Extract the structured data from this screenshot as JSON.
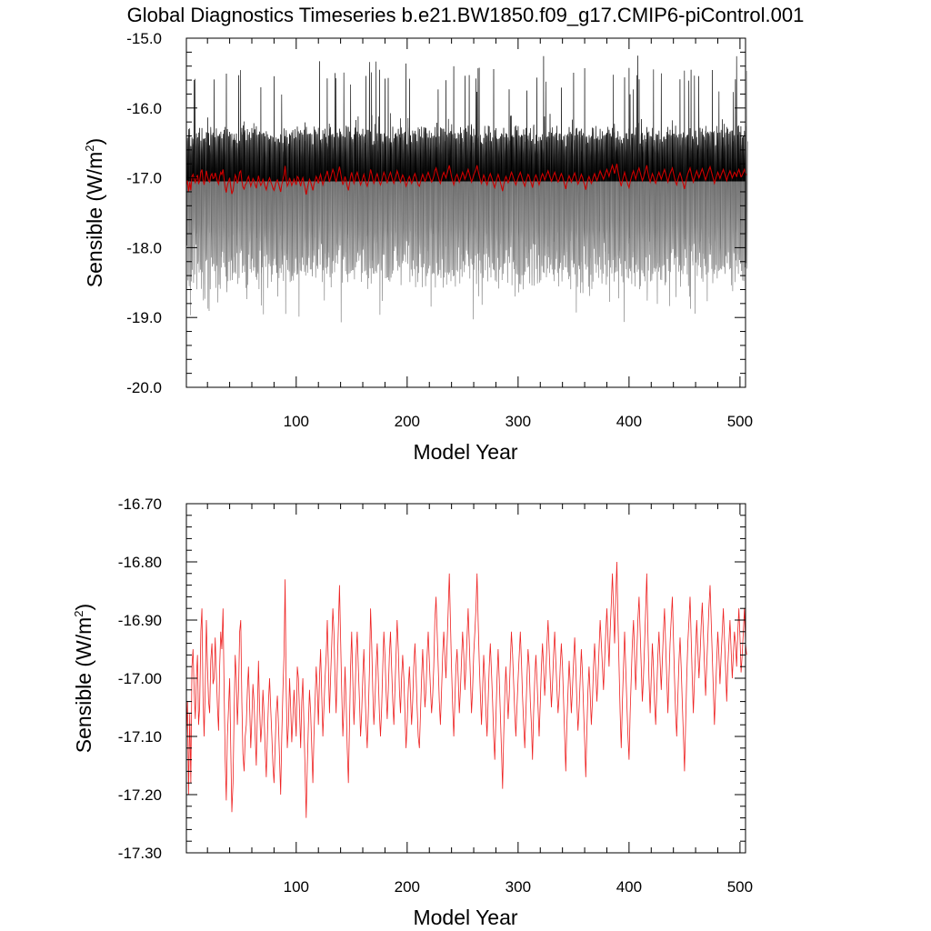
{
  "figure": {
    "title": "Global Diagnostics Timeseries b.e21.BW1850.f09_g17.CMIP6-piControl.001"
  },
  "chart_data": [
    {
      "type": "line",
      "title": "Global Diagnostics Timeseries b.e21.BW1850.f09_g17.CMIP6-piControl.001",
      "xlabel": "Model Year",
      "ylabel": "Sensible (W/m",
      "ylabel_sup": "2",
      "ylabel_close": ")",
      "xlim": [
        1,
        505
      ],
      "ylim": [
        -20.0,
        -15.0
      ],
      "xticks": [
        100,
        200,
        300,
        400,
        500
      ],
      "xtick_labels": [
        "100",
        "200",
        "300",
        "400",
        "500"
      ],
      "yticks": [
        -20.0,
        -19.0,
        -18.0,
        -17.0,
        -16.0,
        -15.0
      ],
      "ytick_labels": [
        "-20.0",
        "-19.0",
        "-18.0",
        "-17.0",
        "-16.0",
        "-15.0"
      ],
      "grid": false,
      "series": [
        {
          "kind": "monthly_envelope",
          "color": "#000000",
          "lower_color": "#6f6f6f",
          "upper_typical": [
            -16.25,
            -16.55
          ],
          "upper_extreme": -15.6,
          "lower_typical": [
            -17.9,
            -18.6
          ],
          "lower_extreme": -19.1
        },
        {
          "kind": "annual_mean",
          "color": "#cc0000",
          "ref": "annual_mean"
        }
      ]
    },
    {
      "type": "line",
      "xlabel": "Model Year",
      "ylabel": "Sensible (W/m",
      "ylabel_sup": "2",
      "ylabel_close": ")",
      "xlim": [
        1,
        505
      ],
      "ylim": [
        -17.3,
        -16.7
      ],
      "xticks": [
        100,
        200,
        300,
        400,
        500
      ],
      "xtick_labels": [
        "100",
        "200",
        "300",
        "400",
        "500"
      ],
      "yticks": [
        -17.3,
        -17.2,
        -17.1,
        -17.0,
        -16.9,
        -16.8,
        -16.7
      ],
      "ytick_labels": [
        "-17.30",
        "-17.20",
        "-17.10",
        "-17.00",
        "-16.90",
        "-16.80",
        "-16.70"
      ],
      "grid": false,
      "series": [
        {
          "kind": "annual_mean",
          "color": "#ee2222",
          "ref": "annual_mean"
        }
      ]
    }
  ],
  "annual_mean": {
    "x_start": 1,
    "x_step": 1,
    "values": [
      -17.1,
      -17.04,
      -17.2,
      -17.06,
      -17.18,
      -16.98,
      -16.95,
      -17.02,
      -17.07,
      -17.0,
      -16.96,
      -17.08,
      -17.05,
      -16.92,
      -16.88,
      -17.03,
      -17.1,
      -17.02,
      -16.9,
      -16.98,
      -17.04,
      -17.06,
      -16.97,
      -16.94,
      -17.01,
      -17.0,
      -16.93,
      -16.99,
      -17.05,
      -17.09,
      -16.98,
      -16.92,
      -16.95,
      -16.88,
      -17.02,
      -17.14,
      -17.21,
      -17.1,
      -17.05,
      -17.0,
      -17.12,
      -17.23,
      -17.18,
      -17.06,
      -16.96,
      -17.0,
      -17.08,
      -17.02,
      -16.92,
      -16.9,
      -17.04,
      -17.13,
      -17.16,
      -17.1,
      -17.08,
      -17.02,
      -16.98,
      -17.05,
      -17.12,
      -17.07,
      -17.01,
      -17.04,
      -17.1,
      -17.15,
      -17.06,
      -16.97,
      -17.05,
      -17.11,
      -17.08,
      -17.02,
      -17.06,
      -17.12,
      -17.17,
      -17.1,
      -17.04,
      -17.0,
      -17.05,
      -17.1,
      -17.15,
      -17.18,
      -17.12,
      -17.06,
      -17.03,
      -17.08,
      -17.14,
      -17.2,
      -17.1,
      -17.02,
      -16.96,
      -16.83,
      -17.02,
      -17.12,
      -17.08,
      -17.0,
      -17.05,
      -17.11,
      -17.07,
      -17.02,
      -17.06,
      -17.1,
      -16.98,
      -17.0,
      -17.06,
      -17.12,
      -17.04,
      -17.0,
      -17.08,
      -17.16,
      -17.24,
      -17.15,
      -17.08,
      -17.02,
      -17.06,
      -17.12,
      -17.18,
      -17.1,
      -17.04,
      -16.98,
      -17.02,
      -17.08,
      -17.0,
      -16.95,
      -17.03,
      -17.1,
      -17.05,
      -17.0,
      -16.96,
      -16.9,
      -16.98,
      -17.06,
      -17.0,
      -16.94,
      -16.88,
      -16.92,
      -17.0,
      -17.06,
      -16.98,
      -16.91,
      -16.84,
      -16.93,
      -17.02,
      -17.1,
      -17.05,
      -16.98,
      -17.04,
      -17.12,
      -17.18,
      -17.08,
      -16.98,
      -16.92,
      -17.0,
      -17.08,
      -17.03,
      -16.96,
      -16.92,
      -16.98,
      -17.04,
      -17.1,
      -17.06,
      -17.0,
      -16.95,
      -17.02,
      -17.08,
      -17.12,
      -17.06,
      -16.99,
      -16.88,
      -16.94,
      -17.02,
      -17.08,
      -17.04,
      -16.98,
      -16.94,
      -17.0,
      -17.06,
      -17.1,
      -17.05,
      -16.98,
      -16.92,
      -16.96,
      -17.02,
      -17.07,
      -17.02,
      -16.96,
      -16.92,
      -16.98,
      -17.04,
      -17.08,
      -17.02,
      -16.96,
      -16.9,
      -16.95,
      -17.02,
      -17.06,
      -17.0,
      -16.96,
      -17.0,
      -17.06,
      -17.12,
      -17.08,
      -17.02,
      -16.98,
      -17.03,
      -17.08,
      -17.04,
      -16.98,
      -16.94,
      -16.99,
      -17.05,
      -17.1,
      -17.12,
      -17.06,
      -17.0,
      -16.95,
      -17.0,
      -17.05,
      -17.02,
      -16.96,
      -16.92,
      -16.97,
      -17.02,
      -17.06,
      -17.03,
      -16.98,
      -16.9,
      -16.86,
      -16.92,
      -16.98,
      -17.04,
      -17.08,
      -17.02,
      -16.96,
      -16.92,
      -16.96,
      -17.0,
      -16.94,
      -16.88,
      -16.82,
      -16.9,
      -16.98,
      -17.05,
      -17.1,
      -17.04,
      -16.98,
      -16.95,
      -17.0,
      -17.06,
      -17.02,
      -16.97,
      -16.92,
      -16.96,
      -17.02,
      -16.98,
      -16.93,
      -16.88,
      -16.94,
      -17.0,
      -17.06,
      -17.02,
      -16.96,
      -16.92,
      -16.88,
      -16.82,
      -16.9,
      -16.97,
      -17.03,
      -17.08,
      -17.02,
      -16.96,
      -17.0,
      -17.06,
      -17.1,
      -17.04,
      -16.98,
      -16.94,
      -16.99,
      -17.04,
      -17.1,
      -17.14,
      -17.07,
      -17.0,
      -16.95,
      -17.0,
      -17.06,
      -17.12,
      -17.19,
      -17.1,
      -17.03,
      -16.98,
      -17.02,
      -17.07,
      -17.03,
      -16.97,
      -16.92,
      -16.96,
      -17.01,
      -17.06,
      -17.1,
      -17.05,
      -17.0,
      -16.96,
      -16.92,
      -16.97,
      -17.03,
      -17.08,
      -17.12,
      -17.06,
      -17.0,
      -16.95,
      -16.98,
      -17.04,
      -17.08,
      -17.14,
      -17.06,
      -17.0,
      -16.96,
      -17.0,
      -17.05,
      -17.1,
      -17.04,
      -16.98,
      -16.94,
      -16.98,
      -17.03,
      -16.99,
      -16.94,
      -16.9,
      -16.95,
      -17.0,
      -17.05,
      -17.01,
      -16.96,
      -16.92,
      -16.97,
      -17.02,
      -17.06,
      -17.03,
      -16.98,
      -16.94,
      -16.98,
      -17.04,
      -17.1,
      -17.16,
      -17.08,
      -17.02,
      -16.97,
      -17.01,
      -17.06,
      -17.02,
      -16.97,
      -16.93,
      -16.98,
      -17.04,
      -17.09,
      -17.05,
      -17.0,
      -16.95,
      -16.99,
      -17.05,
      -17.11,
      -17.17,
      -17.09,
      -17.02,
      -16.98,
      -17.03,
      -17.08,
      -17.04,
      -16.98,
      -16.94,
      -16.99,
      -17.04,
      -17.0,
      -16.95,
      -16.9,
      -16.94,
      -16.98,
      -17.02,
      -16.97,
      -16.92,
      -16.88,
      -16.93,
      -16.98,
      -16.92,
      -16.87,
      -16.82,
      -16.88,
      -16.94,
      -16.86,
      -16.8,
      -16.9,
      -16.98,
      -17.06,
      -17.12,
      -17.04,
      -16.98,
      -16.92,
      -16.98,
      -17.04,
      -17.1,
      -17.14,
      -17.06,
      -17.0,
      -16.94,
      -16.9,
      -16.96,
      -17.02,
      -16.96,
      -16.9,
      -16.86,
      -16.92,
      -16.98,
      -17.04,
      -17.0,
      -16.94,
      -16.88,
      -16.82,
      -16.92,
      -17.0,
      -17.06,
      -17.0,
      -16.94,
      -16.98,
      -17.04,
      -17.08,
      -17.02,
      -16.96,
      -16.92,
      -16.97,
      -17.02,
      -16.97,
      -16.92,
      -16.88,
      -16.94,
      -17.0,
      -17.06,
      -17.0,
      -16.94,
      -16.9,
      -16.86,
      -16.93,
      -17.0,
      -17.06,
      -17.1,
      -17.03,
      -16.97,
      -16.93,
      -16.98,
      -17.04,
      -17.1,
      -17.16,
      -17.08,
      -17.0,
      -16.94,
      -16.9,
      -16.86,
      -16.93,
      -17.0,
      -17.06,
      -17.0,
      -16.95,
      -16.9,
      -16.95,
      -17.0,
      -16.96,
      -16.91,
      -16.87,
      -16.92,
      -16.98,
      -17.03,
      -16.98,
      -16.93,
      -16.88,
      -16.84,
      -16.9,
      -16.96,
      -17.02,
      -17.08,
      -17.02,
      -16.97,
      -16.92,
      -16.96,
      -17.01,
      -16.96,
      -16.92,
      -16.88,
      -16.93,
      -16.98,
      -17.04,
      -16.98,
      -16.94,
      -16.9,
      -16.95,
      -17.0,
      -16.96,
      -16.92,
      -16.94,
      -16.98,
      -16.92,
      -16.88,
      -16.93,
      -16.99,
      -16.96,
      -16.92,
      -16.88,
      -16.94,
      -16.96
    ]
  }
}
